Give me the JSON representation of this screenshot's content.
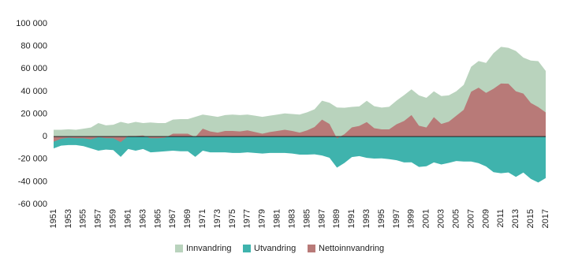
{
  "chart_data": {
    "type": "area",
    "x": [
      1951,
      1952,
      1953,
      1954,
      1955,
      1956,
      1957,
      1958,
      1959,
      1960,
      1961,
      1962,
      1963,
      1964,
      1965,
      1966,
      1967,
      1968,
      1969,
      1970,
      1971,
      1972,
      1973,
      1974,
      1975,
      1976,
      1977,
      1978,
      1979,
      1980,
      1981,
      1982,
      1983,
      1984,
      1985,
      1986,
      1987,
      1988,
      1989,
      1990,
      1991,
      1992,
      1993,
      1994,
      1995,
      1996,
      1997,
      1998,
      1999,
      2000,
      2001,
      2002,
      2003,
      2004,
      2005,
      2006,
      2007,
      2008,
      2009,
      2010,
      2011,
      2012,
      2013,
      2014,
      2015,
      2016,
      2017
    ],
    "series": [
      {
        "name": "Innvandring",
        "color": "#b9d3bd",
        "values": [
          6000,
          6000,
          6500,
          6000,
          7000,
          8000,
          12000,
          10000,
          10500,
          13000,
          11500,
          13000,
          12000,
          12500,
          12000,
          12000,
          15000,
          15500,
          15500,
          17500,
          19500,
          18500,
          17500,
          19000,
          19500,
          19000,
          19500,
          18500,
          17500,
          18500,
          19500,
          20500,
          20000,
          19500,
          21500,
          24200,
          31800,
          30000,
          25800,
          25500,
          26300,
          26700,
          31700,
          26900,
          25700,
          26400,
          31900,
          36700,
          41800,
          36500,
          34300,
          40100,
          35900,
          36500,
          40100,
          45800,
          61800,
          66900,
          65200,
          73900,
          79500,
          78600,
          75800,
          70000,
          67300,
          66800,
          58200
        ]
      },
      {
        "name": "Utvandring",
        "color": "#3fb3ad",
        "values": [
          -10500,
          -8000,
          -7500,
          -7500,
          -8500,
          -10500,
          -12500,
          -11500,
          -12000,
          -18000,
          -11000,
          -12500,
          -11000,
          -14000,
          -13500,
          -13000,
          -12500,
          -13000,
          -13000,
          -18000,
          -12500,
          -14000,
          -14000,
          -14000,
          -14500,
          -14500,
          -14000,
          -14500,
          -15000,
          -14500,
          -14500,
          -14500,
          -15000,
          -16000,
          -16000,
          -15700,
          -16800,
          -18800,
          -27500,
          -23400,
          -18200,
          -17300,
          -18900,
          -19500,
          -19300,
          -20000,
          -21000,
          -22900,
          -22800,
          -26900,
          -26300,
          -22900,
          -24700,
          -23300,
          -21700,
          -22100,
          -22100,
          -23600,
          -26500,
          -31500,
          -32500,
          -31800,
          -35700,
          -31900,
          -37500,
          -40700,
          -36800
        ]
      },
      {
        "name": "Nettoinnvandring",
        "color": "#b87a78",
        "values": [
          -4500,
          -2000,
          -1000,
          -1500,
          -1500,
          -2500,
          -500,
          -1500,
          -1500,
          -5000,
          500,
          500,
          1000,
          -1500,
          -1500,
          -1000,
          2500,
          2500,
          2500,
          -500,
          7000,
          4500,
          3500,
          5000,
          5000,
          4500,
          5500,
          4000,
          2500,
          4000,
          5000,
          6000,
          5000,
          3500,
          5500,
          8500,
          15000,
          11200,
          -1700,
          2100,
          8100,
          9400,
          12800,
          7400,
          6400,
          6400,
          10900,
          13800,
          19000,
          9600,
          8000,
          17200,
          11200,
          13200,
          18400,
          23700,
          39700,
          43300,
          38700,
          42400,
          47000,
          46800,
          40100,
          38100,
          29800,
          26100,
          21400
        ]
      }
    ],
    "xlim": [
      1951,
      2017
    ],
    "xticks": [
      1951,
      1953,
      1955,
      1957,
      1959,
      1961,
      1963,
      1965,
      1967,
      1969,
      1971,
      1973,
      1975,
      1977,
      1979,
      1981,
      1983,
      1985,
      1987,
      1989,
      1991,
      1993,
      1995,
      1997,
      1999,
      2001,
      2003,
      2005,
      2007,
      2009,
      2011,
      2013,
      2015,
      2017
    ],
    "ylim": [
      -60000,
      100000
    ],
    "yticks": [
      {
        "value": -60000,
        "label": "-60 000"
      },
      {
        "value": -40000,
        "label": "-40 000"
      },
      {
        "value": -20000,
        "label": "-20 000"
      },
      0,
      {
        "value": 20000,
        "label": "20 000"
      },
      {
        "value": 40000,
        "label": "40 000"
      },
      {
        "value": 60000,
        "label": "60 000"
      },
      {
        "value": 80000,
        "label": "80 000"
      },
      {
        "value": 100000,
        "label": "100 000"
      }
    ],
    "grid": false,
    "legend": "bottom"
  }
}
